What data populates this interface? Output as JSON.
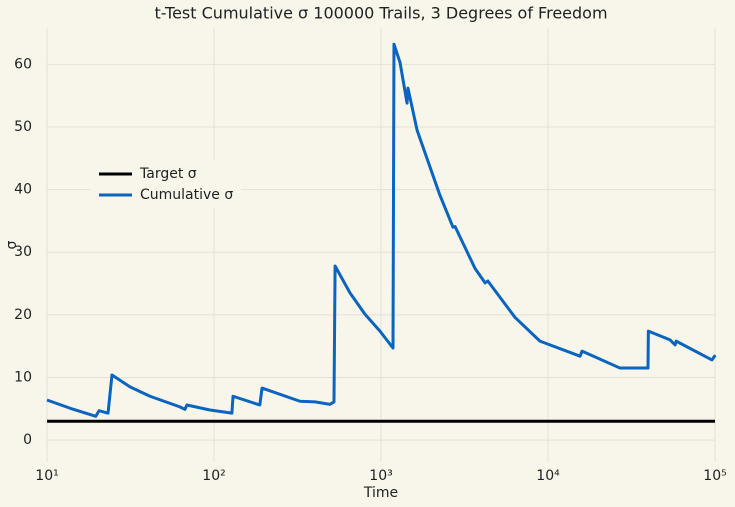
{
  "chart_data": {
    "type": "line",
    "title": "t-Test Cumulative σ 100000 Trails, 3 Degrees of Freedom",
    "x_label": "Time",
    "y_label": "σ",
    "xscale": "log",
    "grid": true,
    "legend_loc": "upper left",
    "xlim": [
      10,
      100000
    ],
    "xticks": [
      {
        "value": 10,
        "label": "10¹"
      },
      {
        "value": 100,
        "label": "10²"
      },
      {
        "value": 1000,
        "label": "10³"
      },
      {
        "value": 10000,
        "label": "10⁴"
      },
      {
        "value": 100000,
        "label": "10⁵"
      }
    ],
    "ylim": [
      -3.5,
      65.8
    ],
    "yticks": [
      0,
      10,
      20,
      30,
      40,
      50,
      60
    ],
    "series": [
      {
        "name": "Target σ",
        "color": "#000000",
        "x": [
          10,
          100000
        ],
        "values": [
          3,
          3
        ]
      },
      {
        "name": "Cumulative σ",
        "color": "#0a64c0",
        "x": [
          10,
          13.7,
          19.6,
          20.5,
          23.2,
          24.5,
          31.4,
          41.4,
          62.5,
          67,
          68.8,
          94.6,
          128,
          130,
          188,
          194,
          327,
          403,
          495,
          523,
          531,
          652,
          802,
          986,
          1180,
          1196,
          1300,
          1432,
          1450,
          1644,
          2253,
          2698,
          2776,
          3659,
          4200,
          4364,
          6339,
          8947,
          15560,
          15990,
          26980,
          39700,
          39900,
          53830,
          57700,
          58500,
          95900,
          99300,
          100000
        ],
        "values": [
          6.4,
          5.1,
          3.8,
          4.7,
          4.3,
          10.4,
          8.5,
          7.0,
          5.3,
          4.9,
          5.6,
          4.8,
          4.3,
          7.0,
          5.6,
          8.3,
          6.2,
          6.1,
          5.7,
          6.1,
          27.8,
          23.5,
          20.1,
          17.4,
          14.7,
          63.2,
          60.3,
          53.8,
          56.2,
          49.5,
          39.1,
          34.0,
          34.1,
          27.4,
          25.1,
          25.4,
          19.6,
          15.8,
          13.4,
          14.2,
          11.5,
          11.5,
          17.4,
          16.0,
          15.2,
          15.8,
          12.8,
          13.4,
          13.2
        ]
      }
    ]
  }
}
